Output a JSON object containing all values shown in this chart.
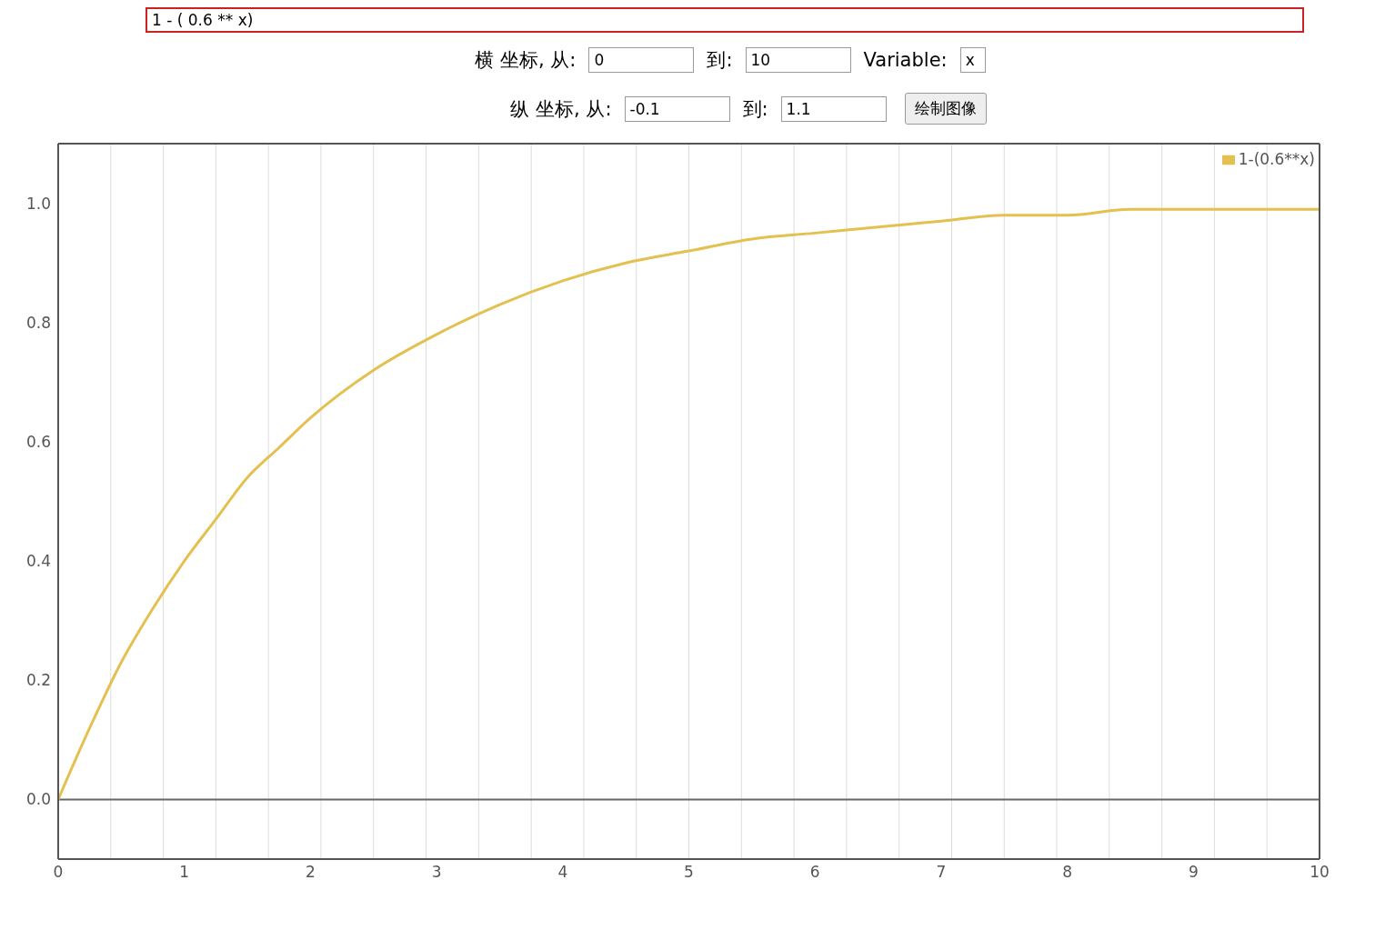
{
  "chart_data": {
    "type": "line",
    "title": "1 - ( 0.6 ** x)",
    "annotations": [
      "横 坐标, 从:",
      "0",
      "到:",
      "10",
      "Variable:",
      "x",
      "纵 坐标, 从:",
      "-0.1",
      "到:",
      "1.1",
      "绘制图像"
    ],
    "x": [
      0,
      0.25,
      0.5,
      0.75,
      1,
      1.25,
      1.5,
      1.75,
      2,
      2.5,
      3,
      3.5,
      4,
      4.5,
      5,
      5.5,
      6,
      6.5,
      7,
      7.5,
      8,
      8.5,
      9,
      9.5,
      10
    ],
    "series": [
      {
        "name": "1-(0.6**x)",
        "color": "#e3c050",
        "values": [
          0,
          0.12,
          0.23,
          0.32,
          0.4,
          0.47,
          0.54,
          0.59,
          0.64,
          0.72,
          0.78,
          0.83,
          0.87,
          0.9,
          0.92,
          0.94,
          0.95,
          0.96,
          0.97,
          0.98,
          0.98,
          0.99,
          0.99,
          0.99,
          0.99
        ]
      }
    ],
    "xlim": [
      0,
      10
    ],
    "xticks": [
      0,
      1,
      2,
      3,
      4,
      5,
      6,
      7,
      8,
      9,
      10
    ],
    "ylim": [
      -0.1,
      1.1
    ],
    "yticks": [
      {
        "value": 0,
        "label": "0.0"
      },
      0.2,
      0.4,
      0.6,
      0.8,
      {
        "value": 1,
        "label": "1.0"
      }
    ],
    "ref_lines": [
      {
        "axis": "y",
        "value": 0,
        "color": "#666666"
      }
    ],
    "grid": true,
    "legend": "top right",
    "marker": "none",
    "line_style": "solid"
  }
}
